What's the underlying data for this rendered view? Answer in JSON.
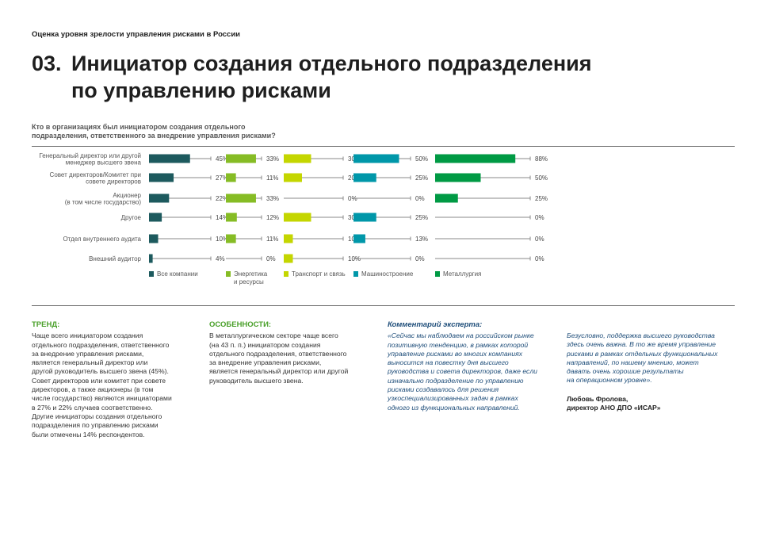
{
  "header": {
    "kicker": "Оценка уровня зрелости управления рисками в России",
    "number": "03.",
    "title_line1": "Инициатор создания отдельного подразделения",
    "title_line2": "по управлению рисками"
  },
  "question": {
    "line1": "Кто в организациях был инициатором создания отдельного",
    "line2": "подразделения, ответственного за внедрение управления рисками?"
  },
  "chart_data": {
    "type": "bar",
    "unit": "%",
    "categories": [
      [
        "Генеральный директор или другой",
        "менеджер высшего звена"
      ],
      [
        "Совет директоров/Комитет при",
        "совете директоров"
      ],
      [
        "Акционер",
        "(в том числе государство)"
      ],
      [
        "Другое"
      ],
      [
        "Отдел внутреннего аудита"
      ],
      [
        "Внешний аудитор"
      ]
    ],
    "series": [
      {
        "name": [
          "Все компании"
        ],
        "color": "#1d5a5e",
        "values": [
          45,
          27,
          22,
          14,
          10,
          4
        ]
      },
      {
        "name": [
          "Энергетика",
          "и ресурсы"
        ],
        "color": "#86bc25",
        "values": [
          33,
          11,
          33,
          12,
          11,
          0
        ]
      },
      {
        "name": [
          "Транспорт и связь"
        ],
        "color": "#c4d600",
        "values": [
          30,
          20,
          0,
          30,
          10,
          10
        ]
      },
      {
        "name": [
          "Машиностроение"
        ],
        "color": "#0097a9",
        "values": [
          50,
          25,
          0,
          25,
          13,
          0
        ]
      },
      {
        "name": [
          "Металлургия"
        ],
        "color": "#009a44",
        "values": [
          88,
          50,
          25,
          0,
          0,
          0
        ]
      }
    ]
  },
  "trend": {
    "heading": "ТРЕНД:",
    "lines": [
      "Чаще всего инициатором создания",
      "отдельного подразделения, ответственного",
      "за внедрение управления рисками,",
      "является генеральный директор или",
      "другой руководитель высшего звена (45%).",
      "Совет директоров или комитет при совете",
      "директоров, а также акционеры (в том",
      "числе государство) являются инициаторами",
      "в 27% и 22% случаев соответственно.",
      "Другие инициаторы создания отдельного",
      "подразделения по управлению рисками",
      "были отмечены 14% респондентов."
    ]
  },
  "features": {
    "heading": "ОСОБЕННОСТИ:",
    "lines": [
      "В металлургическом секторе чаще всего",
      "(на 43 п. п.) инициатором создания",
      "отдельного подразделения, ответственного",
      "за внедрение управления рисками,",
      "является генеральный директор или другой",
      "руководитель высшего звена."
    ]
  },
  "expert": {
    "heading": "Комментарий эксперта:",
    "lines": [
      "«Сейчас мы наблюдаем на российском рынке",
      "позитивную тенденцию, в рамках которой",
      "управление рисками во многих компаниях",
      "выносится на повестку дня высшего",
      "руководства и совета директоров, даже если",
      "изначально подразделение по управлению",
      "рисками создавалось для решения",
      "узкоспециализированных задач в рамках",
      "одного из функциональных направлений."
    ],
    "cont_lines": [
      "Безусловно, поддержка высшего руководства",
      "здесь очень важна. В то же время управление",
      "рисками в рамках отдельных функциональных",
      "направлений, по нашему мнению, может",
      "давать очень хорошие результаты",
      "на операционном уровне»."
    ],
    "sig_name": "Любовь Фролова,",
    "sig_role": "директор АНО ДПО «ИСАР»"
  }
}
